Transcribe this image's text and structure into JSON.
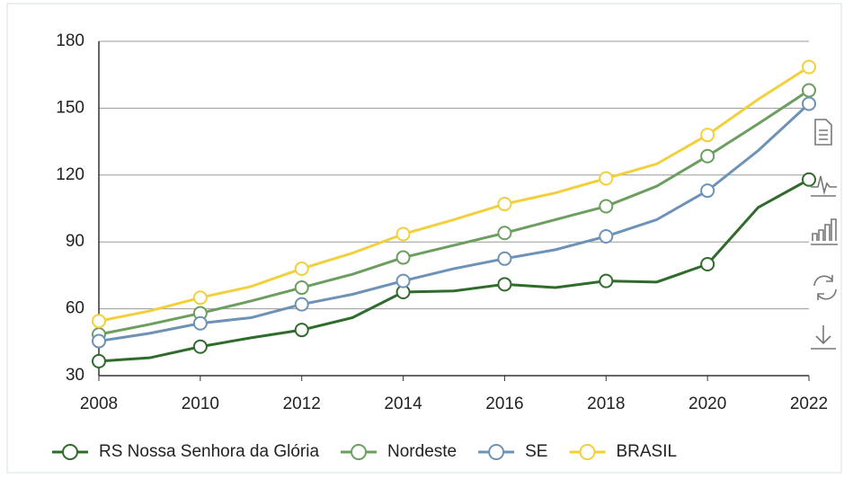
{
  "chart_data": {
    "type": "line",
    "x": [
      2008,
      2009,
      2010,
      2011,
      2012,
      2013,
      2014,
      2015,
      2016,
      2017,
      2018,
      2019,
      2020,
      2021,
      2022
    ],
    "series": [
      {
        "name": "RS Nossa Senhora da Glória",
        "color": "#2f6b2b",
        "values": [
          36.5,
          38,
          43,
          47,
          50.5,
          56,
          67.5,
          68,
          71,
          69.5,
          72.5,
          72,
          80,
          105.5,
          118
        ]
      },
      {
        "name": "Nordeste",
        "color": "#6b9e5f",
        "values": [
          48.5,
          53,
          58,
          63.5,
          69.5,
          75.5,
          83,
          88.5,
          94,
          100,
          106,
          115,
          128.5,
          143,
          158
        ]
      },
      {
        "name": "SE",
        "color": "#6e92b6",
        "values": [
          45.5,
          49,
          53.5,
          56,
          62,
          66.5,
          72.5,
          78,
          82.5,
          86.5,
          92.5,
          100,
          113,
          131,
          152
        ]
      },
      {
        "name": "BRASIL",
        "color": "#f3cf3b",
        "values": [
          54.5,
          59,
          65,
          70,
          78,
          85,
          93.5,
          100,
          107,
          112,
          118.5,
          125,
          138,
          154,
          168.5
        ]
      }
    ],
    "xlim": [
      2008,
      2022
    ],
    "xticks": [
      2008,
      2010,
      2012,
      2014,
      2016,
      2018,
      2020,
      2022
    ],
    "ylim": [
      30,
      180
    ],
    "yticks": [
      30,
      60,
      90,
      120,
      150,
      180
    ],
    "grid": true,
    "legend": "bottom"
  }
}
